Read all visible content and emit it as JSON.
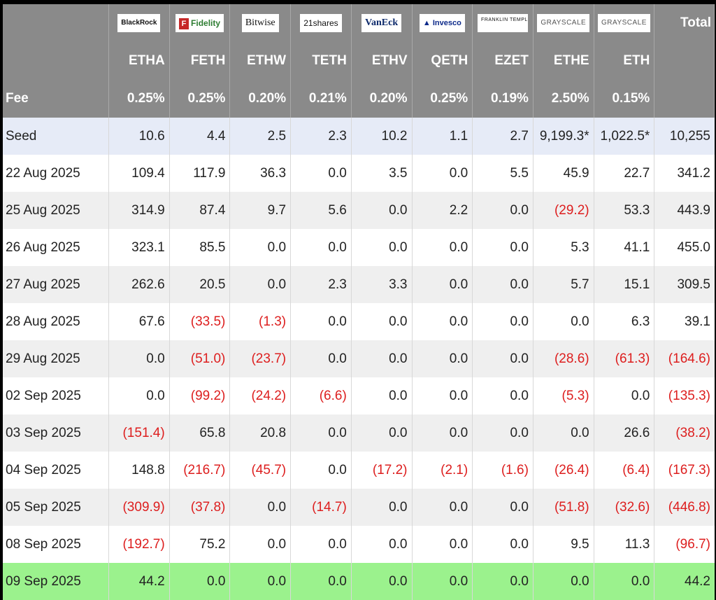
{
  "issuers": [
    {
      "name": "BlackRock",
      "logo_icon": "blackrock-logo"
    },
    {
      "name": "Fidelity",
      "logo_icon": "fidelity-logo"
    },
    {
      "name": "Bitwise",
      "logo_icon": "bitwise-logo"
    },
    {
      "name": "21shares",
      "logo_icon": "21shares-logo"
    },
    {
      "name": "VanEck",
      "logo_icon": "vaneck-logo"
    },
    {
      "name": "Invesco",
      "logo_icon": "invesco-logo"
    },
    {
      "name": "FRANKLIN TEMPLETON",
      "logo_icon": "franklin-templeton-logo"
    },
    {
      "name": "GRAYSCALE",
      "logo_icon": "grayscale-logo"
    },
    {
      "name": "GRAYSCALE",
      "logo_icon": "grayscale-logo"
    }
  ],
  "total_label": "Total",
  "tickers": [
    "ETHA",
    "FETH",
    "ETHW",
    "TETH",
    "ETHV",
    "QETH",
    "EZET",
    "ETHE",
    "ETH"
  ],
  "fee_label": "Fee",
  "fees": [
    "0.25%",
    "0.25%",
    "0.20%",
    "0.21%",
    "0.20%",
    "0.25%",
    "0.19%",
    "2.50%",
    "0.15%"
  ],
  "rows": [
    {
      "label": "Seed",
      "style": "seed",
      "values": [
        "10.6",
        "4.4",
        "2.5",
        "2.3",
        "10.2",
        "1.1",
        "2.7",
        "9,199.3*",
        "1,022.5*",
        "10,255"
      ]
    },
    {
      "label": "22 Aug 2025",
      "style": "even",
      "values": [
        "109.4",
        "117.9",
        "36.3",
        "0.0",
        "3.5",
        "0.0",
        "5.5",
        "45.9",
        "22.7",
        "341.2"
      ]
    },
    {
      "label": "25 Aug 2025",
      "style": "odd",
      "values": [
        "314.9",
        "87.4",
        "9.7",
        "5.6",
        "0.0",
        "2.2",
        "0.0",
        "(29.2)",
        "53.3",
        "443.9"
      ]
    },
    {
      "label": "26 Aug 2025",
      "style": "even",
      "values": [
        "323.1",
        "85.5",
        "0.0",
        "0.0",
        "0.0",
        "0.0",
        "0.0",
        "5.3",
        "41.1",
        "455.0"
      ]
    },
    {
      "label": "27 Aug 2025",
      "style": "odd",
      "values": [
        "262.6",
        "20.5",
        "0.0",
        "2.3",
        "3.3",
        "0.0",
        "0.0",
        "5.7",
        "15.1",
        "309.5"
      ]
    },
    {
      "label": "28 Aug 2025",
      "style": "even",
      "values": [
        "67.6",
        "(33.5)",
        "(1.3)",
        "0.0",
        "0.0",
        "0.0",
        "0.0",
        "0.0",
        "6.3",
        "39.1"
      ]
    },
    {
      "label": "29 Aug 2025",
      "style": "odd",
      "values": [
        "0.0",
        "(51.0)",
        "(23.7)",
        "0.0",
        "0.0",
        "0.0",
        "0.0",
        "(28.6)",
        "(61.3)",
        "(164.6)"
      ]
    },
    {
      "label": "02 Sep 2025",
      "style": "even",
      "values": [
        "0.0",
        "(99.2)",
        "(24.2)",
        "(6.6)",
        "0.0",
        "0.0",
        "0.0",
        "(5.3)",
        "0.0",
        "(135.3)"
      ]
    },
    {
      "label": "03 Sep 2025",
      "style": "odd",
      "values": [
        "(151.4)",
        "65.8",
        "20.8",
        "0.0",
        "0.0",
        "0.0",
        "0.0",
        "0.0",
        "26.6",
        "(38.2)"
      ]
    },
    {
      "label": "04 Sep 2025",
      "style": "even",
      "values": [
        "148.8",
        "(216.7)",
        "(45.7)",
        "0.0",
        "(17.2)",
        "(2.1)",
        "(1.6)",
        "(26.4)",
        "(6.4)",
        "(167.3)"
      ]
    },
    {
      "label": "05 Sep 2025",
      "style": "odd",
      "values": [
        "(309.9)",
        "(37.8)",
        "0.0",
        "(14.7)",
        "0.0",
        "0.0",
        "0.0",
        "(51.8)",
        "(32.6)",
        "(446.8)"
      ]
    },
    {
      "label": "08 Sep 2025",
      "style": "even",
      "values": [
        "(192.7)",
        "75.2",
        "0.0",
        "0.0",
        "0.0",
        "0.0",
        "0.0",
        "9.5",
        "11.3",
        "(96.7)"
      ]
    },
    {
      "label": "09 Sep 2025",
      "style": "latest",
      "values": [
        "44.2",
        "0.0",
        "0.0",
        "0.0",
        "0.0",
        "0.0",
        "0.0",
        "0.0",
        "0.0",
        "44.2"
      ]
    }
  ],
  "colors": {
    "header_bg": "#8a8a8a",
    "seed_row_bg": "#e6ebf7",
    "latest_row_bg": "#9bf28d",
    "negative_text": "#dd1e1e"
  }
}
